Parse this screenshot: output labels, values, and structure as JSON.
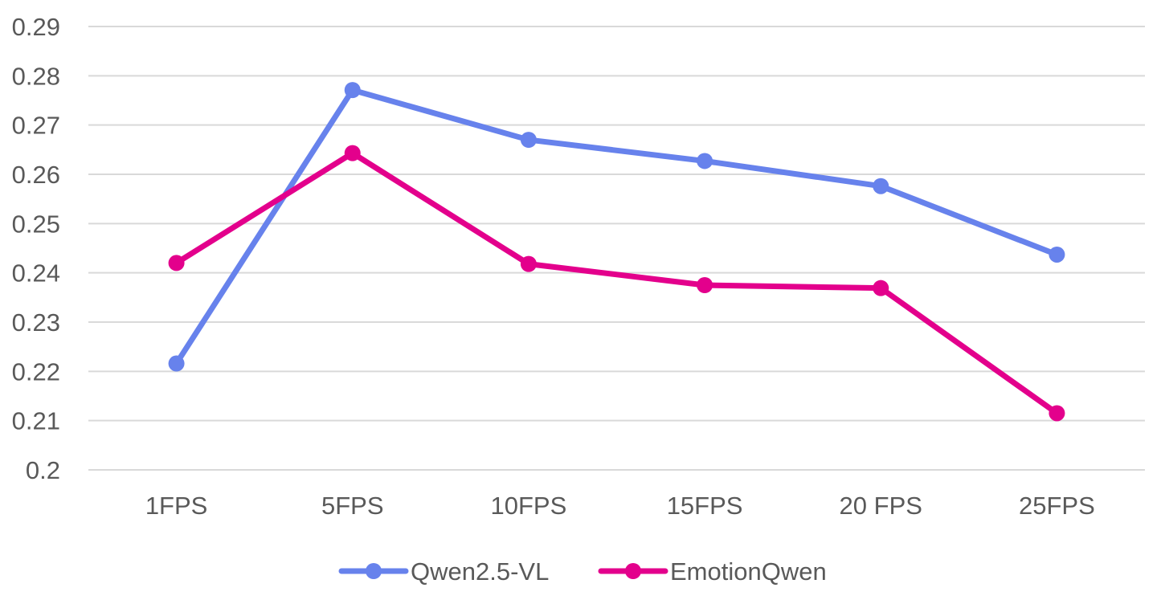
{
  "chart_data": {
    "type": "line",
    "title": "",
    "xlabel": "",
    "ylabel": "",
    "categories": [
      "1FPS",
      "5FPS",
      "10FPS",
      "15FPS",
      "20 FPS",
      "25FPS"
    ],
    "y_ticks": [
      "0.2",
      "0.21",
      "0.22",
      "0.23",
      "0.24",
      "0.25",
      "0.26",
      "0.27",
      "0.28",
      "0.29"
    ],
    "ylim": [
      0.2,
      0.29
    ],
    "grid": true,
    "legend_position": "bottom",
    "series": [
      {
        "name": "Qwen2.5-VL",
        "color": "#6782EC",
        "values": [
          0.2216,
          0.2771,
          0.267,
          0.2627,
          0.2576,
          0.2437
        ]
      },
      {
        "name": "EmotionQwen",
        "color": "#E3008C",
        "values": [
          0.242,
          0.2643,
          0.2418,
          0.2375,
          0.2369,
          0.2115
        ]
      }
    ]
  }
}
